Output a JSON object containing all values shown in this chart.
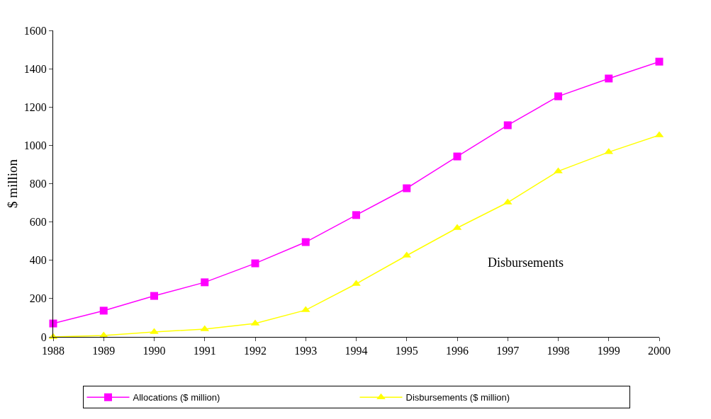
{
  "chart_data": {
    "type": "line",
    "ylabel": "$ million",
    "categories": [
      "1988",
      "1989",
      "1990",
      "1991",
      "1992",
      "1993",
      "1994",
      "1995",
      "1996",
      "1997",
      "1998",
      "1999",
      "2000"
    ],
    "series": [
      {
        "name": "Allocations ($ million)",
        "color": "#ff00ff",
        "marker": "square",
        "values": [
          70,
          137,
          214,
          285,
          384,
          495,
          636,
          776,
          942,
          1105,
          1256,
          1349,
          1437
        ]
      },
      {
        "name": "Disbursements ($ million)",
        "color": "#ffff00",
        "marker": "triangle",
        "values": [
          0,
          7,
          26,
          41,
          70,
          140,
          277,
          425,
          569,
          702,
          865,
          965,
          1053
        ]
      }
    ],
    "ylim": [
      0,
      1600
    ],
    "yticks": [
      0,
      200,
      400,
      600,
      800,
      1000,
      1200,
      1400,
      1600
    ],
    "grid": false,
    "legend": "bottom",
    "line_style": "solid",
    "annotations": [
      "Disbursements"
    ]
  }
}
